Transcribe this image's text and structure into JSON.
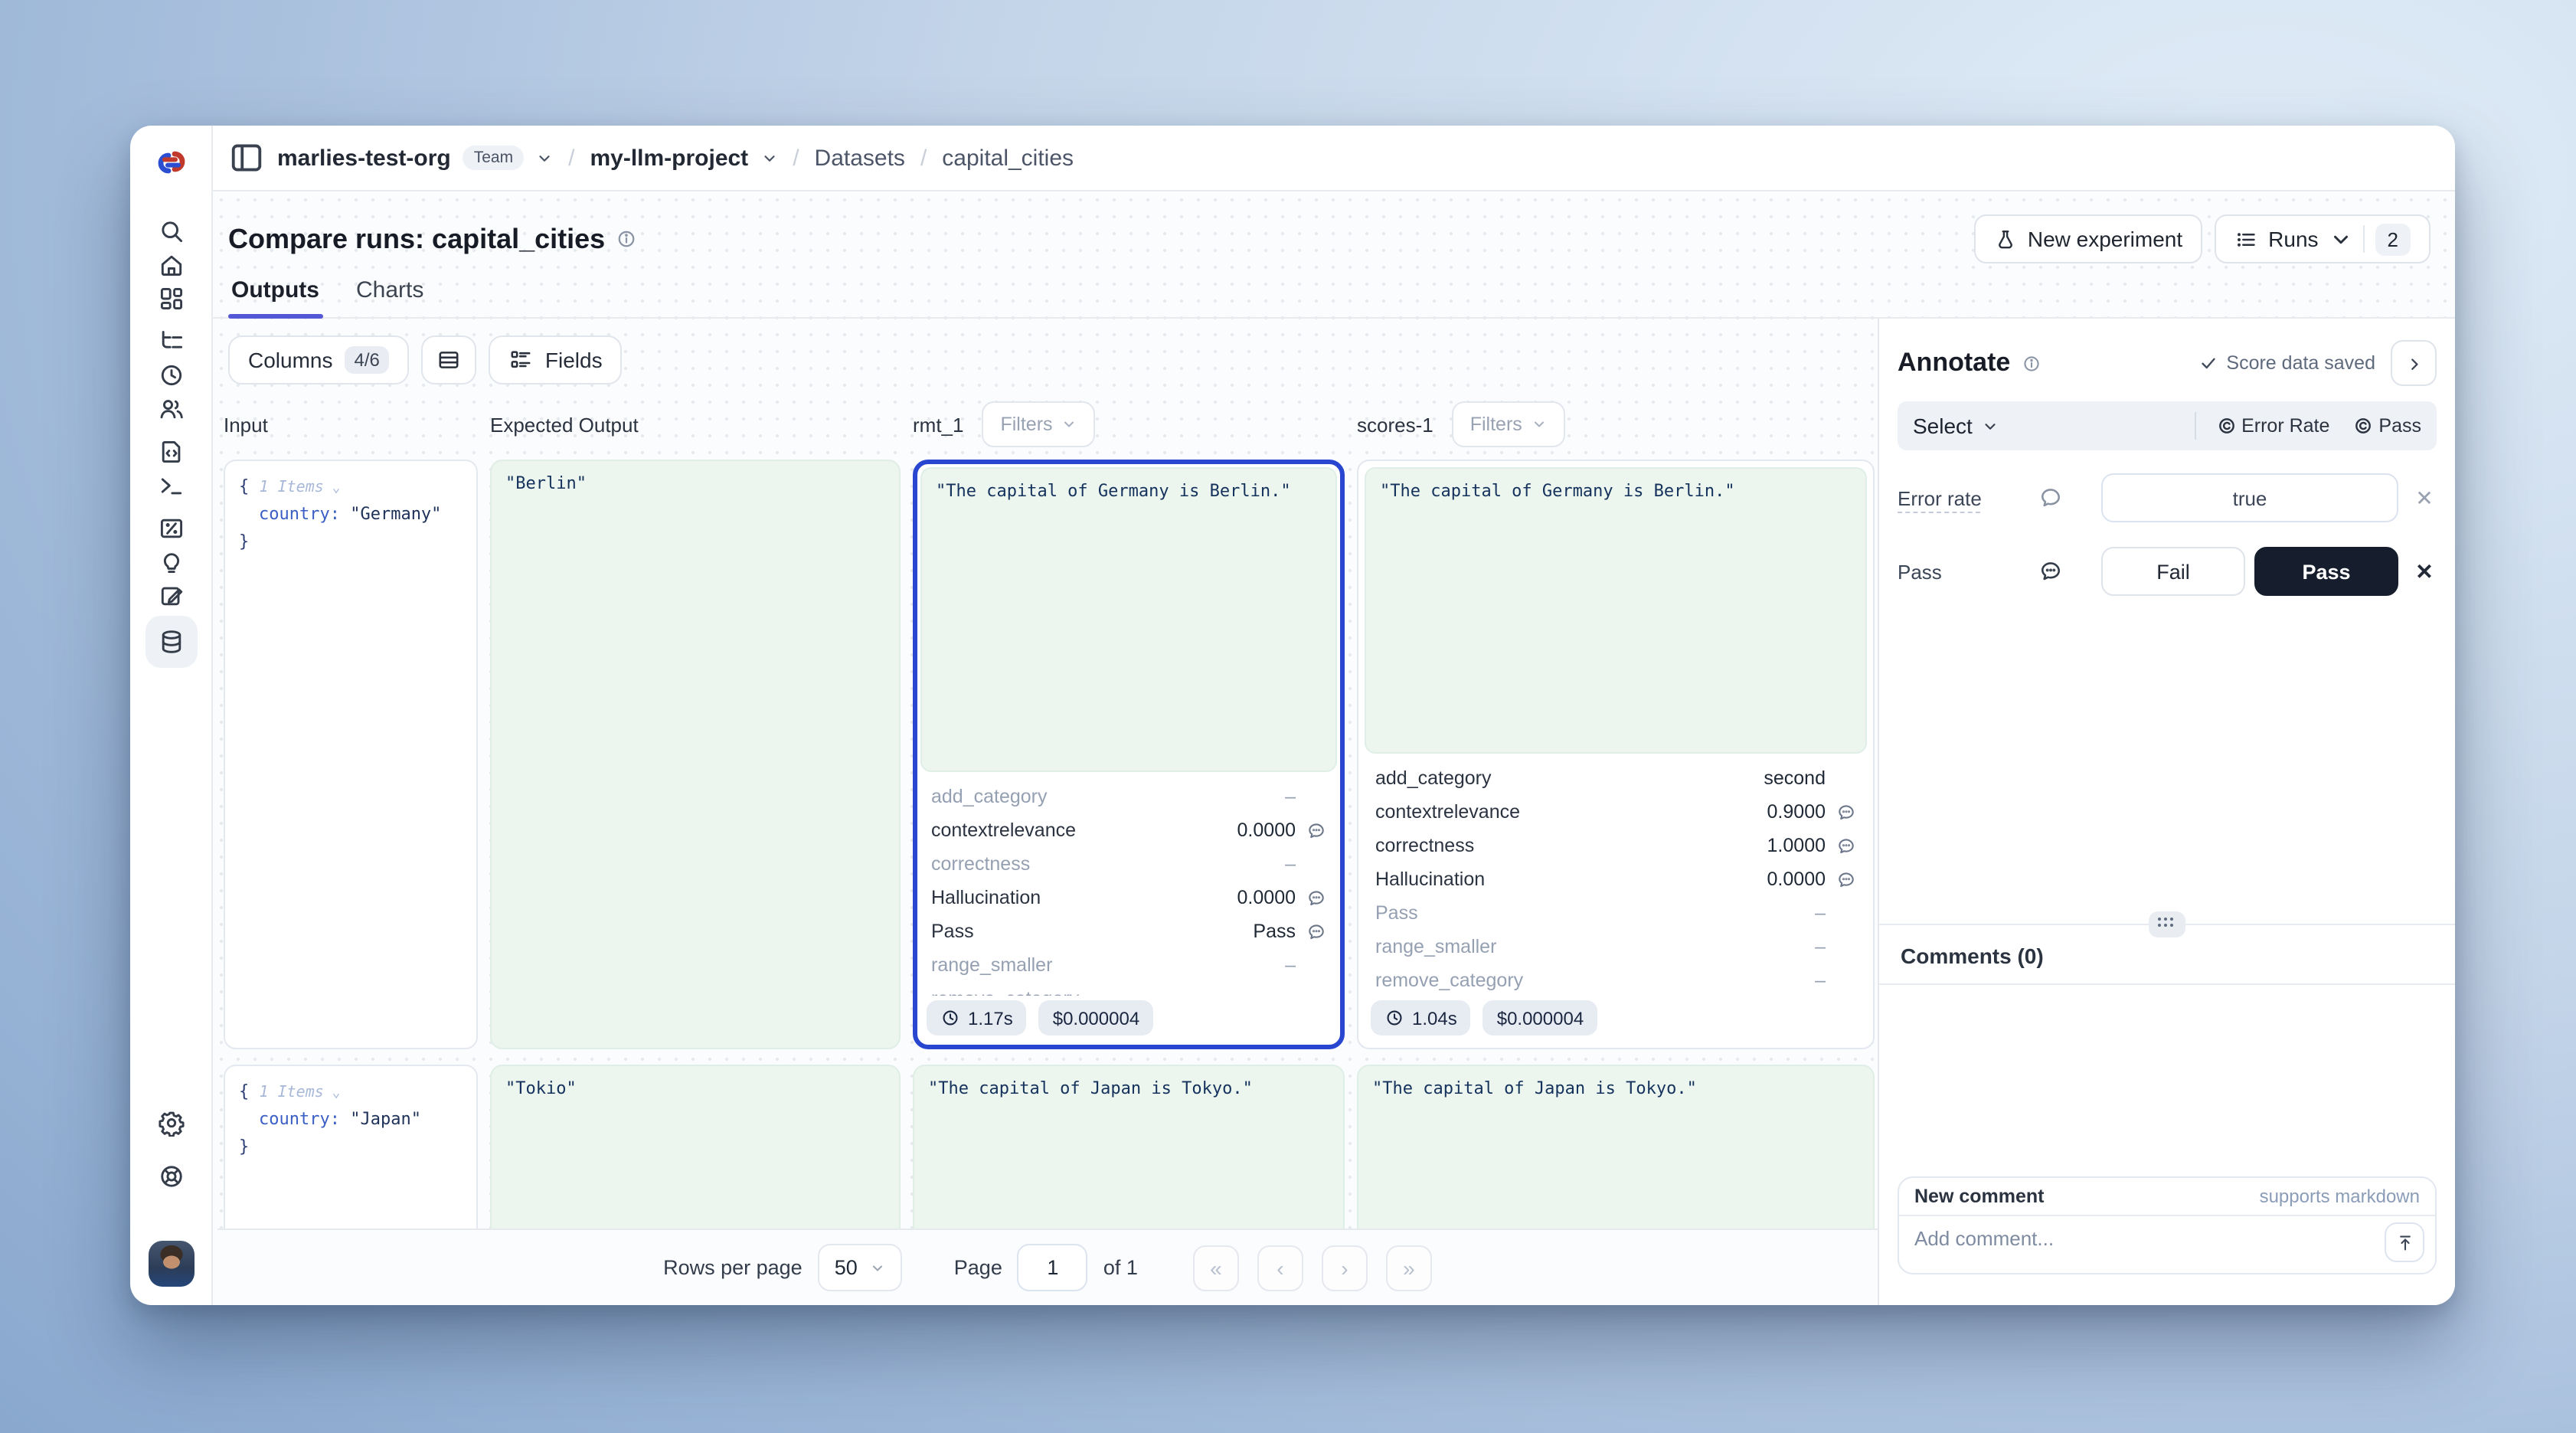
{
  "breadcrumb": {
    "org": "marlies-test-org",
    "org_badge": "Team",
    "project": "my-llm-project",
    "section": "Datasets",
    "current": "capital_cities",
    "sep": "/"
  },
  "header": {
    "title": "Compare runs: capital_cities",
    "new_experiment_label": "New experiment",
    "runs_label": "Runs",
    "runs_count": "2"
  },
  "tabs": {
    "outputs": "Outputs",
    "charts": "Charts"
  },
  "toolbar": {
    "columns_label": "Columns",
    "columns_count": "4/6",
    "fields_label": "Fields"
  },
  "table": {
    "col_input": "Input",
    "col_expected": "Expected Output",
    "col_run1": "rmt_1",
    "col_run2": "scores-1",
    "filters_label": "Filters",
    "row1": {
      "input": {
        "brace_open": "{",
        "items": "1 Items",
        "key": "country:",
        "value": "\"Germany\"",
        "brace_close": "}"
      },
      "expected": "\"Berlin\"",
      "run1": {
        "output": "\"The capital of Germany is Berlin.\"",
        "scores": [
          {
            "name": "add_category",
            "value": "–",
            "muted": true,
            "comment": false
          },
          {
            "name": "contextrelevance",
            "value": "0.0000",
            "muted": false,
            "comment": true
          },
          {
            "name": "correctness",
            "value": "–",
            "muted": true,
            "comment": false
          },
          {
            "name": "Hallucination",
            "value": "0.0000",
            "muted": false,
            "comment": true
          },
          {
            "name": "Pass",
            "value": "Pass",
            "muted": false,
            "comment": true
          },
          {
            "name": "range_smaller",
            "value": "–",
            "muted": true,
            "comment": false
          },
          {
            "name": "remove_category",
            "value": "–",
            "muted": true,
            "comment": false
          }
        ],
        "latency": "1.17s",
        "cost": "$0.000004"
      },
      "run2": {
        "output": "\"The capital of Germany is Berlin.\"",
        "scores": [
          {
            "name": "add_category",
            "value": "second",
            "muted": false,
            "comment": false
          },
          {
            "name": "contextrelevance",
            "value": "0.9000",
            "muted": false,
            "comment": true
          },
          {
            "name": "correctness",
            "value": "1.0000",
            "muted": false,
            "comment": true
          },
          {
            "name": "Hallucination",
            "value": "0.0000",
            "muted": false,
            "comment": true
          },
          {
            "name": "Pass",
            "value": "–",
            "muted": true,
            "comment": false
          },
          {
            "name": "range_smaller",
            "value": "–",
            "muted": true,
            "comment": false
          },
          {
            "name": "remove_category",
            "value": "–",
            "muted": true,
            "comment": false
          }
        ],
        "latency": "1.04s",
        "cost": "$0.000004"
      }
    },
    "row2": {
      "input": {
        "brace_open": "{",
        "items": "1 Items",
        "key": "country:",
        "value": "\"Japan\"",
        "brace_close": "}"
      },
      "expected": "\"Tokio\"",
      "run1_output": "\"The capital of Japan is Tokyo.\"",
      "run2_output": "\"The capital of Japan is Tokyo.\""
    }
  },
  "pagination": {
    "rows_per_page_label": "Rows per page",
    "rows_per_page_value": "50",
    "page_label": "Page",
    "page_value": "1",
    "of_label": "of 1",
    "first": "«",
    "prev": "‹",
    "next": "›",
    "last": "»"
  },
  "annotate": {
    "title": "Annotate",
    "saved_status": "Score data saved",
    "select_label": "Select",
    "quick_scorers": [
      "Error Rate",
      "Pass"
    ],
    "error_rate_label": "Error rate",
    "error_rate_value": "true",
    "pass_label": "Pass",
    "fail_option": "Fail",
    "pass_option": "Pass",
    "close_glyph": "✕",
    "comments_title": "Comments (0)",
    "new_comment_title": "New comment",
    "markdown_hint": "supports markdown",
    "comment_placeholder": "Add comment..."
  },
  "colors": {
    "selection_blue": "#2946d1",
    "tab_indigo": "#5457d6",
    "green_cell": "#ecf6ef",
    "dark_button": "#161e2d"
  }
}
